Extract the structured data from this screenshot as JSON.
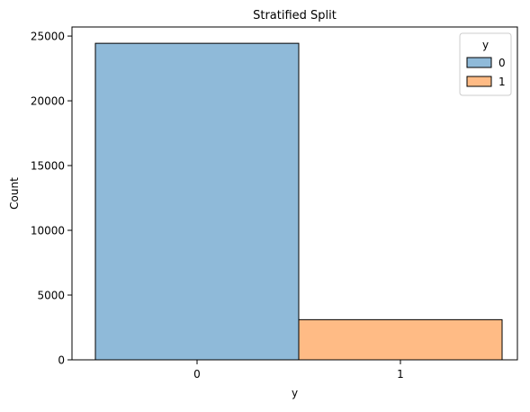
{
  "chart_data": {
    "type": "bar",
    "title": "Stratified Split",
    "xlabel": "y",
    "ylabel": "Count",
    "categories": [
      "0",
      "1"
    ],
    "series": [
      {
        "name": "0",
        "category": "0",
        "value": 24440,
        "color": "#8fbad9"
      },
      {
        "name": "1",
        "category": "1",
        "value": 3100,
        "color": "#ffbb85"
      }
    ],
    "ylim": [
      0,
      25700
    ],
    "yticks": [
      0,
      5000,
      10000,
      15000,
      20000,
      25000
    ],
    "grid": false,
    "legend": {
      "title": "y",
      "placement": "top-right",
      "entries": [
        "0",
        "1"
      ]
    }
  }
}
